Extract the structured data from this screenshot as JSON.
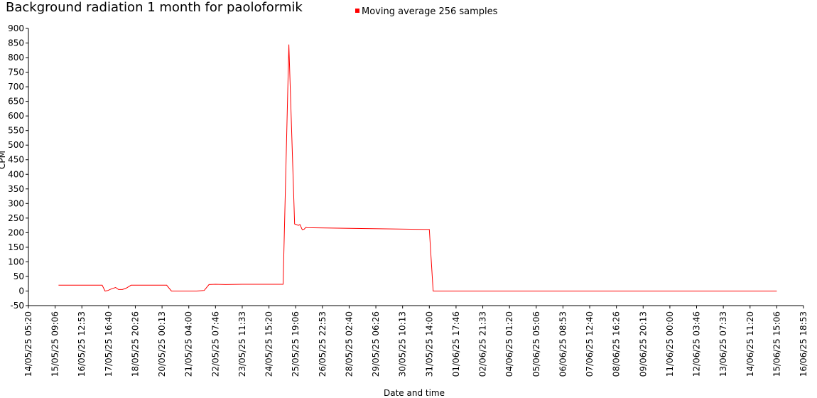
{
  "title": "Background radiation 1 month for paoloformik",
  "legend": {
    "label": "Moving average 256 samples",
    "color": "#ff0000"
  },
  "chart_data": {
    "type": "line",
    "title": "Background radiation 1 month for paoloformik",
    "xlabel": "Date and time",
    "ylabel": "CPM",
    "ylim": [
      -50,
      900
    ],
    "y_ticks": [
      -50,
      0,
      50,
      100,
      150,
      200,
      250,
      300,
      350,
      400,
      450,
      500,
      550,
      600,
      650,
      700,
      750,
      800,
      850,
      900
    ],
    "x_tick_labels": [
      "14/05/25 05:20",
      "15/05/25 09:06",
      "16/05/25 12:53",
      "17/05/25 16:40",
      "18/05/25 20:26",
      "20/05/25 00:13",
      "21/05/25 04:00",
      "22/05/25 07:46",
      "23/05/25 11:33",
      "24/05/25 15:20",
      "25/05/25 19:06",
      "26/05/25 22:53",
      "28/05/25 02:40",
      "29/05/25 06:26",
      "30/05/25 10:13",
      "31/05/25 14:00",
      "01/06/25 17:46",
      "02/06/25 21:33",
      "04/06/25 01:20",
      "05/06/25 05:06",
      "06/06/25 08:53",
      "07/06/25 12:40",
      "08/06/25 16:26",
      "09/06/25 20:13",
      "11/06/25 00:00",
      "12/06/25 03:46",
      "13/06/25 07:33",
      "14/06/25 11:20",
      "15/06/25 15:06",
      "16/06/25 18:53"
    ],
    "grid": false,
    "legend_position": "top-center",
    "series": [
      {
        "name": "Moving average 256 samples",
        "color": "#ff0000",
        "x": [
          "15/05/25 12:40",
          "16/05/25 12:53",
          "17/05/25 10:00",
          "17/05/25 13:00",
          "17/05/25 16:00",
          "17/05/25 20:00",
          "18/05/25 00:00",
          "18/05/25 03:00",
          "18/05/25 07:00",
          "18/05/25 11:00",
          "18/05/25 16:00",
          "18/05/25 20:26",
          "19/05/25 12:00",
          "20/05/25 05:00",
          "20/05/25 10:00",
          "20/05/25 18:00",
          "21/05/25 12:00",
          "21/05/25 20:00",
          "22/05/25 01:00",
          "22/05/25 07:46",
          "22/05/25 18:00",
          "23/05/25 11:33",
          "24/05/25 15:20",
          "25/05/25 06:00",
          "25/05/25 12:00",
          "25/05/25 18:00",
          "25/05/25 22:00",
          "25/05/25 23:30",
          "26/05/25 02:00",
          "26/05/25 04:00",
          "26/05/25 05:30",
          "26/05/25 07:00",
          "31/05/25 14:00",
          "31/05/25 18:00",
          "01/06/25 17:46",
          "15/06/25 15:06"
        ],
        "y": [
          20,
          20,
          20,
          0,
          2,
          8,
          12,
          5,
          5,
          10,
          20,
          20,
          20,
          20,
          0,
          0,
          0,
          2,
          22,
          23,
          22,
          23,
          23,
          23,
          845,
          230,
          225,
          228,
          210,
          212,
          218,
          217,
          211,
          0,
          0,
          0
        ]
      }
    ]
  }
}
